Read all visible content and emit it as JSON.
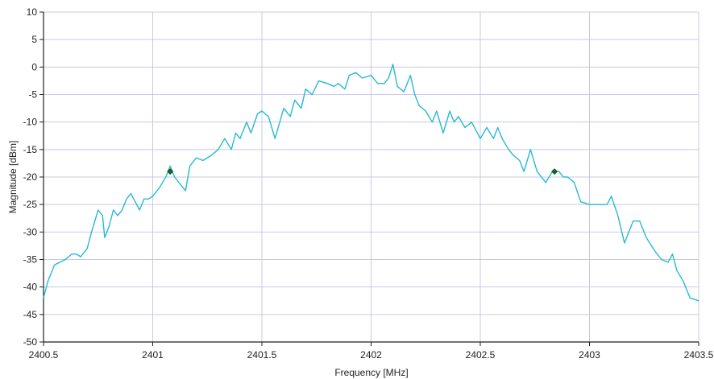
{
  "chart_data": {
    "type": "line",
    "xlabel": "Frequency [MHz]",
    "ylabel": "Magnitude [dBm]",
    "xlim": [
      2400.5,
      2403.5
    ],
    "ylim": [
      -50,
      10
    ],
    "xticks": [
      2400.5,
      2401,
      2401.5,
      2402,
      2402.5,
      2403,
      2403.5
    ],
    "xtick_labels": [
      "2400.5",
      "2401",
      "2401.5",
      "2402",
      "2402.5",
      "2403",
      "2403.5"
    ],
    "yticks": [
      10,
      5,
      0,
      -5,
      -10,
      -15,
      -20,
      -25,
      -30,
      -35,
      -40,
      -45,
      -50
    ],
    "ytick_labels": [
      "10",
      "5",
      "0",
      "-5",
      "-10",
      "-15",
      "-20",
      "-25",
      "-30",
      "-35",
      "-40",
      "-45",
      "-50"
    ],
    "grid": true,
    "colors": {
      "line": "#27b9d4",
      "grid": "#c9c9e6",
      "marker": "#0f6b14",
      "axis": "#222222"
    },
    "series": [
      {
        "x": [
          2400.5,
          2400.52,
          2400.55,
          2400.6,
          2400.63,
          2400.65,
          2400.67,
          2400.7,
          2400.72,
          2400.75,
          2400.77,
          2400.78,
          2400.8,
          2400.82,
          2400.84,
          2400.86,
          2400.88,
          2400.9,
          2400.92,
          2400.94,
          2400.96,
          2400.98,
          2401.0,
          2401.03,
          2401.06,
          2401.08,
          2401.1,
          2401.12,
          2401.15,
          2401.17,
          2401.2,
          2401.23,
          2401.27,
          2401.3,
          2401.33,
          2401.36,
          2401.38,
          2401.4,
          2401.43,
          2401.45,
          2401.48,
          2401.5,
          2401.53,
          2401.56,
          2401.6,
          2401.63,
          2401.65,
          2401.68,
          2401.7,
          2401.73,
          2401.76,
          2401.8,
          2401.83,
          2401.85,
          2401.88,
          2401.9,
          2401.93,
          2401.96,
          2402.0,
          2402.03,
          2402.06,
          2402.08,
          2402.1,
          2402.12,
          2402.15,
          2402.18,
          2402.2,
          2402.22,
          2402.25,
          2402.28,
          2402.3,
          2402.33,
          2402.36,
          2402.38,
          2402.4,
          2402.43,
          2402.46,
          2402.5,
          2402.53,
          2402.56,
          2402.58,
          2402.6,
          2402.63,
          2402.65,
          2402.68,
          2402.7,
          2402.73,
          2402.76,
          2402.8,
          2402.83,
          2402.86,
          2402.88,
          2402.9,
          2402.93,
          2402.96,
          2403.0,
          2403.03,
          2403.06,
          2403.08,
          2403.1,
          2403.13,
          2403.16,
          2403.2,
          2403.23,
          2403.26,
          2403.3,
          2403.33,
          2403.36,
          2403.38,
          2403.4,
          2403.43,
          2403.46,
          2403.5
        ],
        "y": [
          -42,
          -39,
          -36,
          -35,
          -34,
          -34,
          -34.5,
          -33,
          -30,
          -26,
          -27,
          -31,
          -29,
          -26,
          -27,
          -26,
          -24,
          -23,
          -24.5,
          -26,
          -24,
          -24,
          -23.5,
          -22,
          -20,
          -18,
          -20,
          -21,
          -22.5,
          -18,
          -16.5,
          -17,
          -16,
          -15,
          -13,
          -15,
          -12,
          -13,
          -10,
          -12,
          -8.5,
          -8,
          -9,
          -13,
          -7.5,
          -9,
          -6,
          -7.5,
          -4,
          -5,
          -2.5,
          -3,
          -3.5,
          -3,
          -4,
          -1.5,
          -1,
          -2,
          -1.5,
          -3,
          -3,
          -2,
          0.5,
          -3.5,
          -4.5,
          -1.5,
          -5,
          -7,
          -8,
          -10,
          -8,
          -12,
          -8,
          -10,
          -9,
          -11,
          -10,
          -13,
          -11,
          -13,
          -11,
          -13,
          -15,
          -16,
          -17,
          -19,
          -15,
          -19,
          -21,
          -19,
          -19,
          -20,
          -20,
          -21,
          -24.5,
          -25,
          -25,
          -25,
          -25,
          -23.5,
          -27,
          -32,
          -28,
          -28,
          -31,
          -33.5,
          -35,
          -35.5,
          -34,
          -37,
          -39,
          -42,
          -42.5
        ]
      }
    ],
    "markers": [
      {
        "x": 2401.08,
        "y": -19
      },
      {
        "x": 2402.84,
        "y": -19
      }
    ]
  }
}
